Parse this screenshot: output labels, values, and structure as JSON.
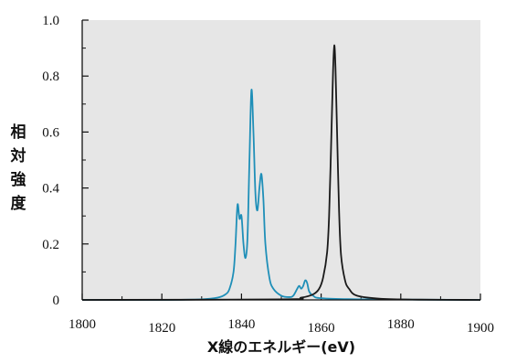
{
  "chart_data": {
    "type": "line",
    "title": "",
    "xlabel": "X線のエネルギー(eV)",
    "ylabel_chars": [
      "相",
      "対",
      "強",
      "度"
    ],
    "xlim": [
      1800,
      1900
    ],
    "ylim": [
      0,
      1.0
    ],
    "x_ticks": [
      1800,
      1820,
      1840,
      1860,
      1880,
      1900
    ],
    "x_tick_labels": [
      "1800",
      "1820",
      "1840",
      "1860",
      "1880",
      "1900"
    ],
    "y_ticks": [
      0,
      0.2,
      0.4,
      0.6,
      0.8,
      1.0
    ],
    "y_tick_labels": [
      "0",
      "0.2",
      "0.4",
      "0.6",
      "0.8",
      "1.0"
    ],
    "grid": false,
    "background_color": "#e6e6e6",
    "series": [
      {
        "color": "#1f8fb8",
        "points": [
          [
            1800,
            0.0
          ],
          [
            1820,
            0.0
          ],
          [
            1830,
            0.002
          ],
          [
            1834,
            0.008
          ],
          [
            1836,
            0.02
          ],
          [
            1837,
            0.04
          ],
          [
            1838,
            0.1
          ],
          [
            1838.5,
            0.2
          ],
          [
            1839,
            0.34
          ],
          [
            1839.5,
            0.29
          ],
          [
            1840,
            0.3
          ],
          [
            1840.5,
            0.2
          ],
          [
            1841,
            0.15
          ],
          [
            1841.5,
            0.22
          ],
          [
            1842,
            0.5
          ],
          [
            1842.5,
            0.75
          ],
          [
            1843,
            0.6
          ],
          [
            1843.5,
            0.38
          ],
          [
            1844,
            0.32
          ],
          [
            1844.5,
            0.4
          ],
          [
            1845,
            0.45
          ],
          [
            1845.5,
            0.36
          ],
          [
            1846,
            0.2
          ],
          [
            1847,
            0.08
          ],
          [
            1848,
            0.04
          ],
          [
            1850,
            0.015
          ],
          [
            1852,
            0.01
          ],
          [
            1853,
            0.015
          ],
          [
            1854,
            0.04
          ],
          [
            1854.5,
            0.05
          ],
          [
            1855,
            0.04
          ],
          [
            1855.5,
            0.05
          ],
          [
            1856,
            0.07
          ],
          [
            1856.5,
            0.06
          ],
          [
            1857,
            0.03
          ],
          [
            1858,
            0.015
          ],
          [
            1860,
            0.006
          ],
          [
            1870,
            0.002
          ],
          [
            1900,
            0.0
          ]
        ]
      },
      {
        "color": "#1a1a1a",
        "points": [
          [
            1800,
            0.0
          ],
          [
            1850,
            0.002
          ],
          [
            1855,
            0.008
          ],
          [
            1858,
            0.02
          ],
          [
            1859.5,
            0.04
          ],
          [
            1860.5,
            0.08
          ],
          [
            1861.5,
            0.17
          ],
          [
            1862,
            0.3
          ],
          [
            1862.5,
            0.55
          ],
          [
            1863,
            0.82
          ],
          [
            1863.3,
            0.91
          ],
          [
            1863.6,
            0.83
          ],
          [
            1864,
            0.6
          ],
          [
            1864.5,
            0.32
          ],
          [
            1865,
            0.16
          ],
          [
            1866,
            0.07
          ],
          [
            1867,
            0.04
          ],
          [
            1869,
            0.015
          ],
          [
            1875,
            0.004
          ],
          [
            1885,
            0.001
          ],
          [
            1900,
            0.0
          ]
        ]
      }
    ]
  }
}
